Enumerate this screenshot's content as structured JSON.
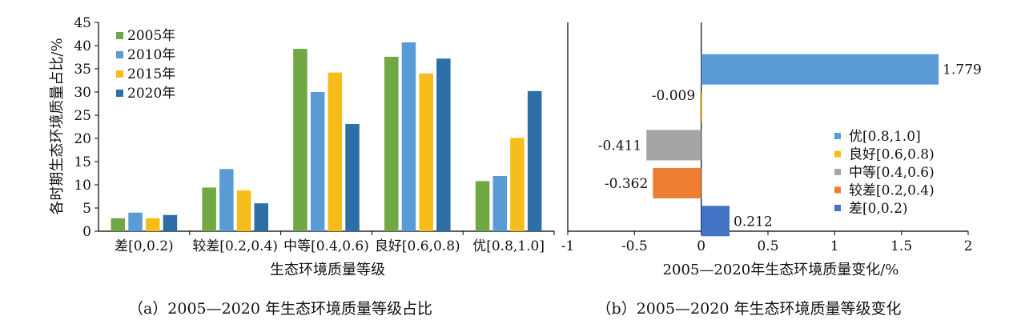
{
  "chart_data": [
    {
      "type": "bar",
      "caption": "（a）2005—2020 年生态环境质量等级占比",
      "xlabel": "生态环境质量等级",
      "ylabel": "各时期生态环境质量占比/%",
      "ylim": [
        0,
        45
      ],
      "yticks": [
        0,
        5,
        10,
        15,
        20,
        25,
        30,
        35,
        40,
        45
      ],
      "legend_position": "top-left",
      "categories": [
        "差[0,0.2)",
        "较差[0.2,0.4)",
        "中等[0.4,0.6)",
        "良好[0.6,0.8)",
        "优[0.8,1.0]"
      ],
      "series": [
        {
          "name": "2005年",
          "color": "#70a845",
          "values": [
            2.8,
            9.4,
            39.3,
            37.6,
            10.8
          ]
        },
        {
          "name": "2010年",
          "color": "#5b9bd5",
          "values": [
            4.0,
            13.4,
            30.0,
            40.7,
            11.9
          ]
        },
        {
          "name": "2015年",
          "color": "#f5bd1a",
          "values": [
            2.8,
            8.8,
            34.2,
            34.0,
            20.1
          ]
        },
        {
          "name": "2020年",
          "color": "#2e6ea6",
          "values": [
            3.5,
            6.0,
            23.1,
            37.2,
            30.2
          ]
        }
      ]
    },
    {
      "type": "bar",
      "orientation": "horizontal",
      "caption": "（b）2005—2020 年生态环境质量等级变化",
      "xlabel": "2005—2020年生态环境质量变化/%",
      "xlim": [
        -1,
        2
      ],
      "xticks": [
        "-1",
        "-0.5",
        "0",
        "0.5",
        "1",
        "1.5",
        "2"
      ],
      "legend_position": "bottom-right",
      "categories": [
        "优[0.8,1.0]",
        "良好[0.6,0.8)",
        "中等[0.4,0.6)",
        "较差[0.2,0.4)",
        "差[0,0.2)"
      ],
      "values": [
        1.779,
        -0.009,
        -0.411,
        -0.362,
        0.212
      ],
      "labels": [
        "1.779",
        "-0.009",
        "-0.411",
        "-0.362",
        "0.212"
      ],
      "colors": [
        "#5b9bd5",
        "#f5bd1a",
        "#a5a5a5",
        "#ed7d31",
        "#4472c4"
      ]
    }
  ]
}
